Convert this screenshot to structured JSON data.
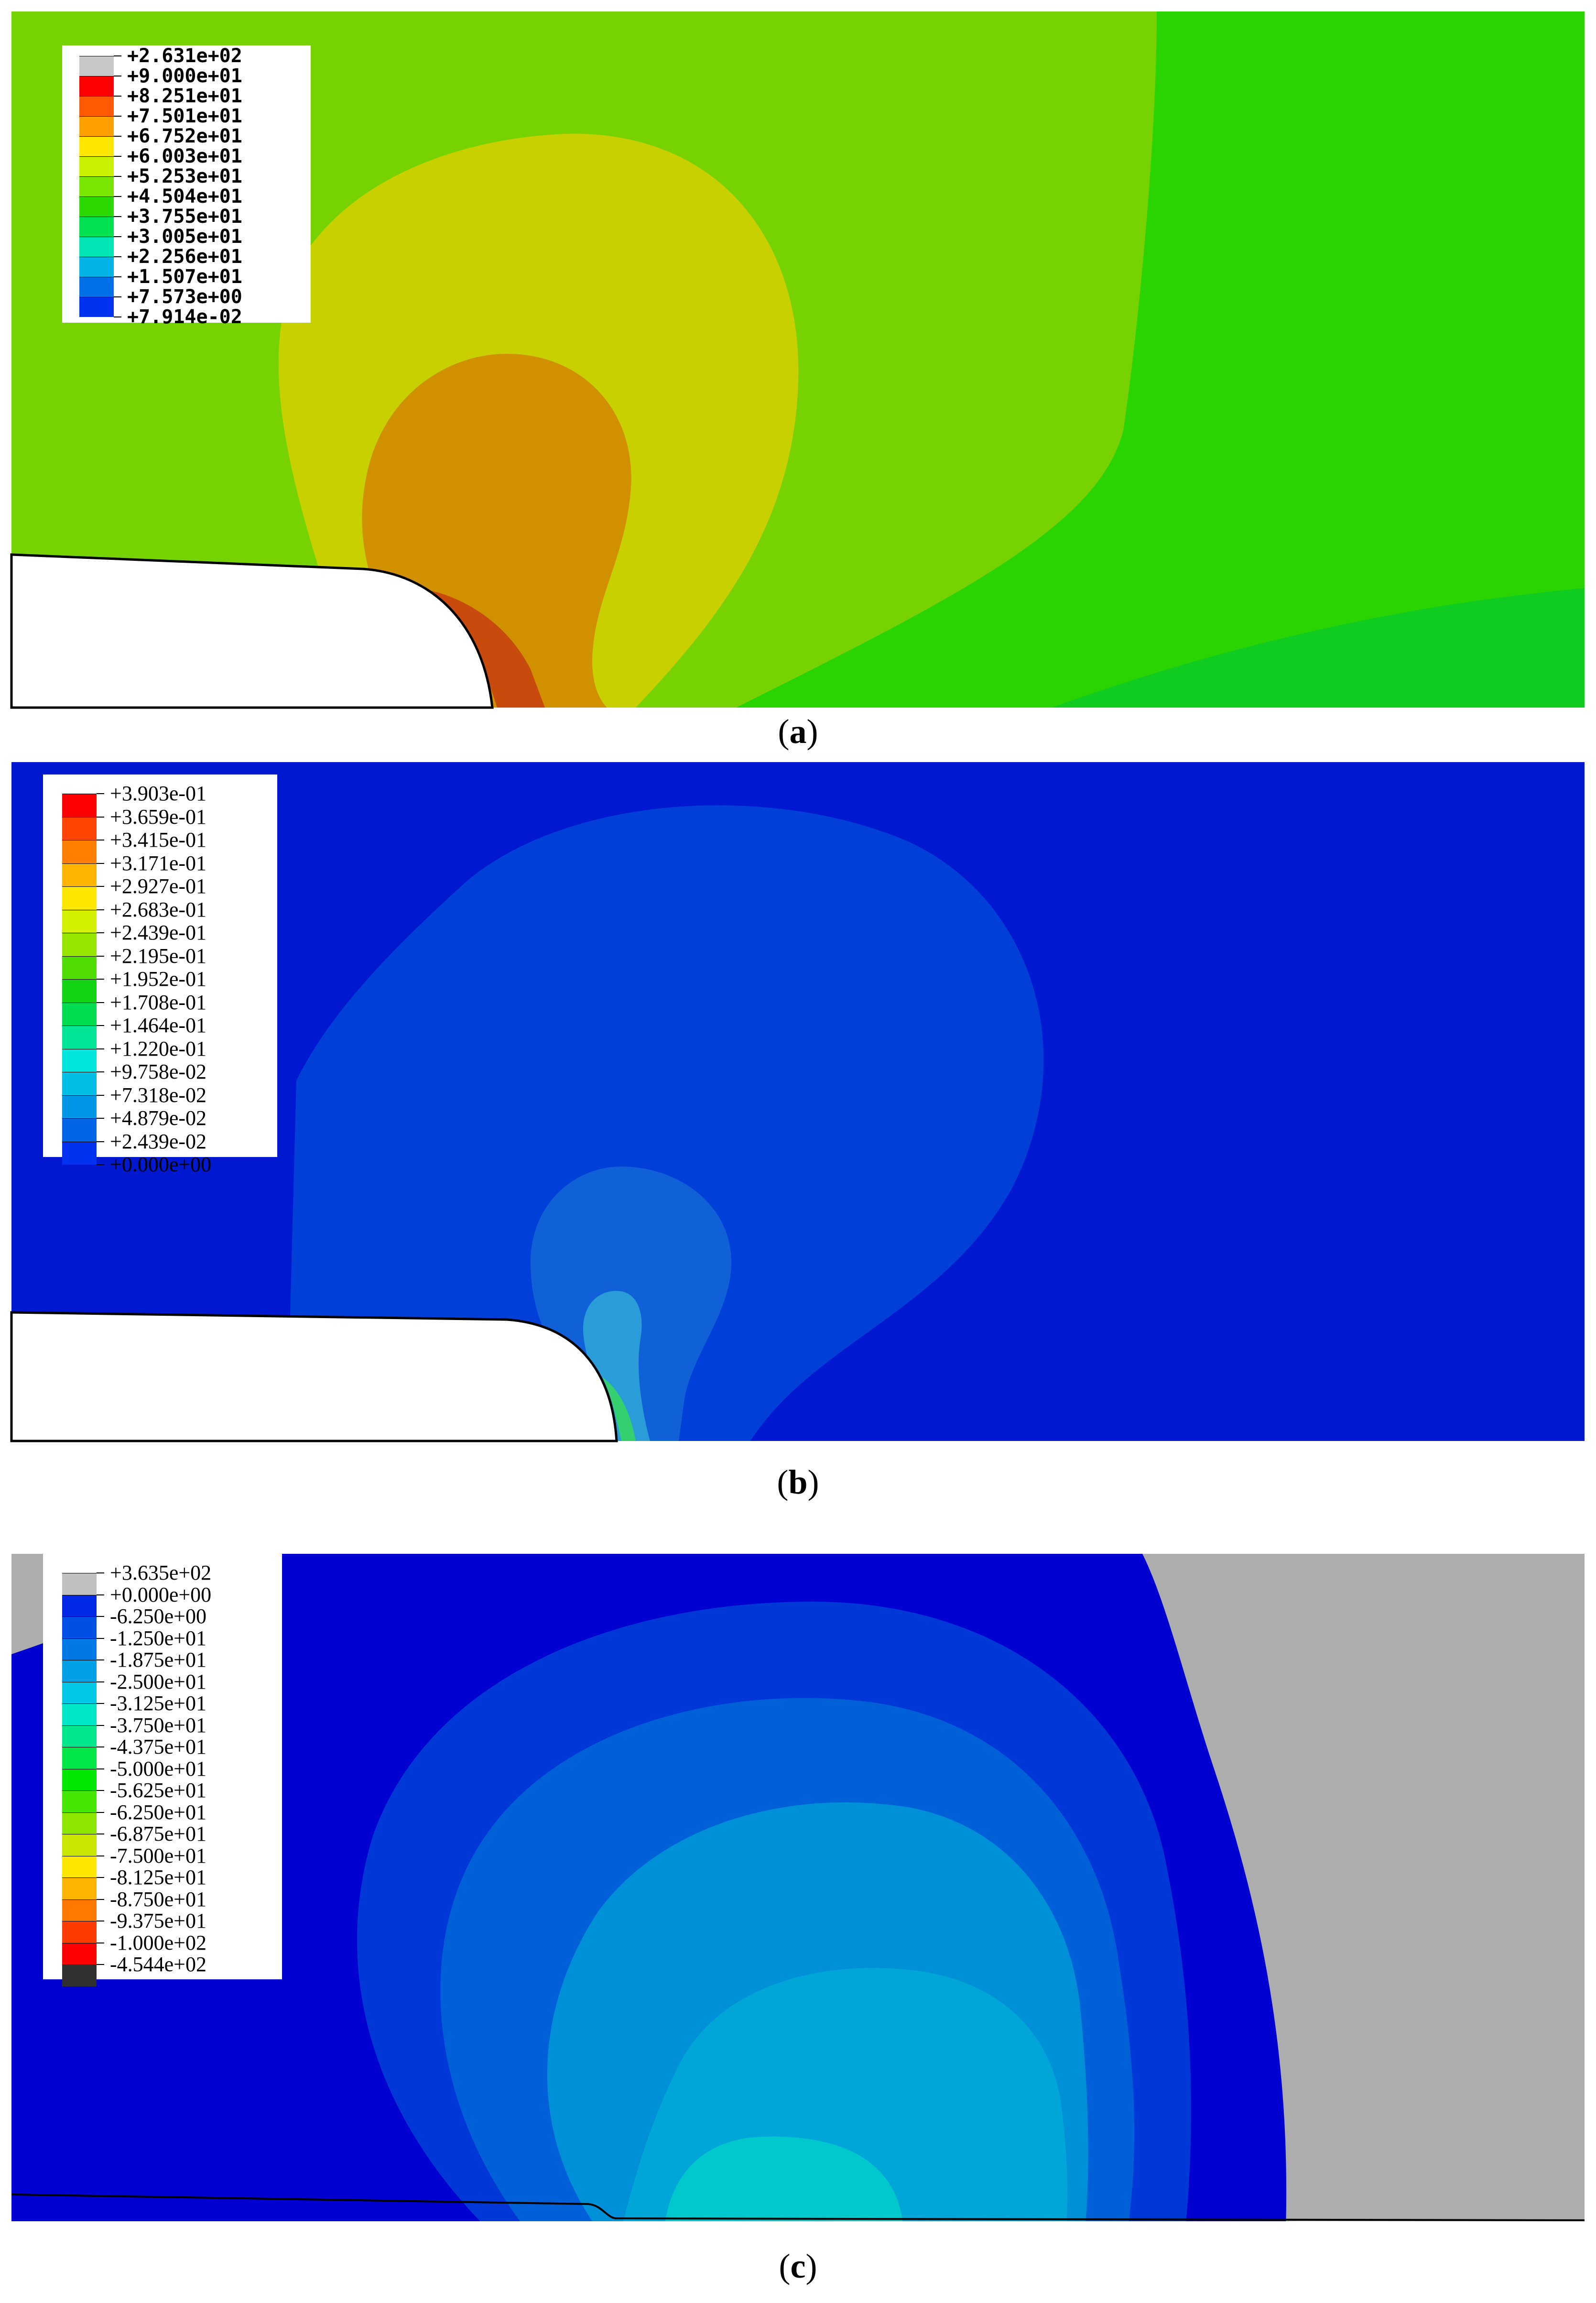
{
  "panels": [
    {
      "id": "a",
      "caption": {
        "open": "(",
        "letter": "a",
        "close": ")"
      },
      "legend": {
        "labels": [
          "+2.631e+02",
          "+9.000e+01",
          "+8.251e+01",
          "+7.501e+01",
          "+6.752e+01",
          "+6.003e+01",
          "+5.253e+01",
          "+4.504e+01",
          "+3.755e+01",
          "+3.005e+01",
          "+2.256e+01",
          "+1.507e+01",
          "+7.573e+00",
          "+7.914e-02"
        ],
        "colors": [
          "#c8c8c8",
          "#ff0000",
          "#ff5a00",
          "#ffa000",
          "#ffe600",
          "#c8f000",
          "#78e600",
          "#2bd800",
          "#00e050",
          "#00e6b4",
          "#00b4e6",
          "#0070e6",
          "#0032f0"
        ]
      },
      "field_colors": {
        "background": "#2ad400",
        "outer": "#76d200",
        "mid": "#c8d000",
        "inner": "#d09000",
        "core": "#c84a0c",
        "edge": "#10cc20"
      }
    },
    {
      "id": "b",
      "caption": {
        "open": "(",
        "letter": "b",
        "close": ")"
      },
      "legend": {
        "labels": [
          "+3.903e-01",
          "+3.659e-01",
          "+3.415e-01",
          "+3.171e-01",
          "+2.927e-01",
          "+2.683e-01",
          "+2.439e-01",
          "+2.195e-01",
          "+1.952e-01",
          "+1.708e-01",
          "+1.464e-01",
          "+1.220e-01",
          "+9.758e-02",
          "+7.318e-02",
          "+4.879e-02",
          "+2.439e-02",
          "+0.000e+00"
        ],
        "colors": [
          "#ff0000",
          "#ff4500",
          "#ff8000",
          "#ffb400",
          "#ffe600",
          "#d2f000",
          "#96e600",
          "#50dc00",
          "#14d214",
          "#00dc50",
          "#00e696",
          "#00e6dc",
          "#00bee6",
          "#0096e6",
          "#0064e6",
          "#0032f0"
        ]
      },
      "field_colors": {
        "background": "#0018d0",
        "region": "#0040d8",
        "bulb": "#1060d8",
        "tip": "#2a9cd8",
        "hot": "#34d070"
      }
    },
    {
      "id": "c",
      "caption": {
        "open": "(",
        "letter": "c",
        "close": ")"
      },
      "legend": {
        "labels": [
          "+3.635e+02",
          "+0.000e+00",
          "-6.250e+00",
          "-1.250e+01",
          "-1.875e+01",
          "-2.500e+01",
          "-3.125e+01",
          "-3.750e+01",
          "-4.375e+01",
          "-5.000e+01",
          "-5.625e+01",
          "-6.250e+01",
          "-6.875e+01",
          "-7.500e+01",
          "-8.125e+01",
          "-8.750e+01",
          "-9.375e+01",
          "-1.000e+02",
          "-4.544e+02"
        ],
        "colors": [
          "#c0c0c0",
          "#0028e6",
          "#0050e6",
          "#0078e6",
          "#00a0e6",
          "#00c8e6",
          "#00e6c8",
          "#00e68c",
          "#00e646",
          "#00e600",
          "#46e600",
          "#8ce600",
          "#c8e600",
          "#ffe600",
          "#ffb400",
          "#ff7800",
          "#ff3c00",
          "#ff0000",
          "#303030"
        ]
      },
      "field_colors": {
        "background": "#0000d0",
        "grey": "#adadad",
        "ring1": "#0038d8",
        "ring2": "#0060d8",
        "ring3": "#0090d8",
        "core": "#00a6d8",
        "inner": "#00c8cc"
      }
    }
  ]
}
